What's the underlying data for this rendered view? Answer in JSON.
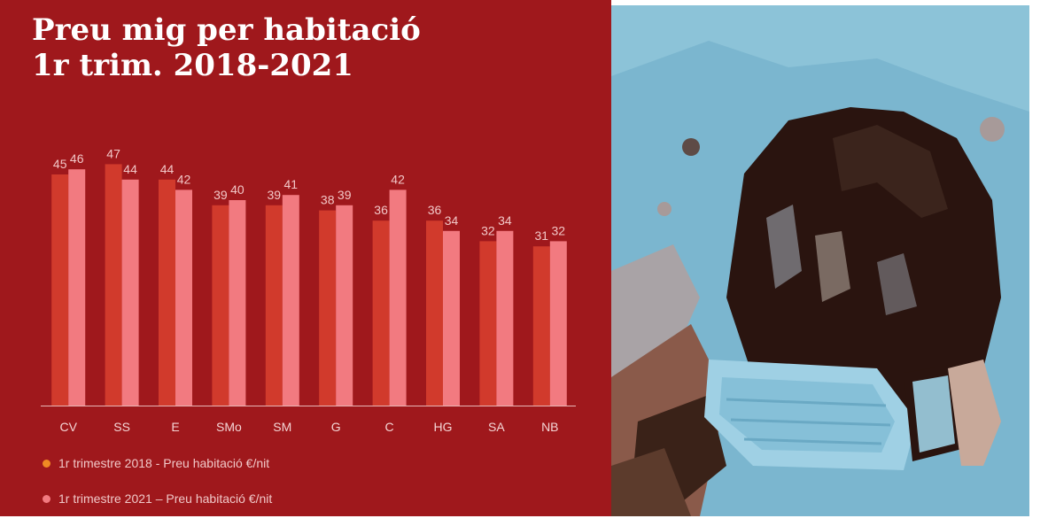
{
  "title": {
    "line1": "Preu mig per habitació",
    "line2": "1r trim. 2018-2021"
  },
  "colors": {
    "background": "#9f181c",
    "series_2018": "#d13a2c",
    "series_2021": "#f27a80",
    "legend_dot_2018": "#f08a24",
    "legend_dot_2021": "#f27a80"
  },
  "chart_data": {
    "type": "bar",
    "title": "Preu mig per habitació 1r trim. 2018-2021",
    "categories": [
      "CV",
      "SS",
      "E",
      "SMo",
      "SM",
      "G",
      "C",
      "HG",
      "SA",
      "NB"
    ],
    "series": [
      {
        "name": "1r trimestre 2018 - Preu habitació €/nit",
        "values": [
          45,
          47,
          44,
          39,
          39,
          38,
          36,
          36,
          32,
          31
        ]
      },
      {
        "name": "1r trimestre 2021 – Preu habitació €/nit",
        "values": [
          46,
          44,
          42,
          40,
          41,
          39,
          42,
          34,
          34,
          32
        ]
      }
    ],
    "xlabel": "",
    "ylabel": "",
    "ylim": [
      0,
      48
    ],
    "data_labels": true,
    "grid": false,
    "legend_position": "bottom-left"
  },
  "legend": [
    {
      "label": "1r trimestre 2018 - Preu habitació €/nit",
      "color": "#f08a24"
    },
    {
      "label": "1r trimestre 2021 – Preu habitació €/nit",
      "color": "#f27a80"
    }
  ],
  "photo": {
    "subject": "face-mask-icon"
  }
}
